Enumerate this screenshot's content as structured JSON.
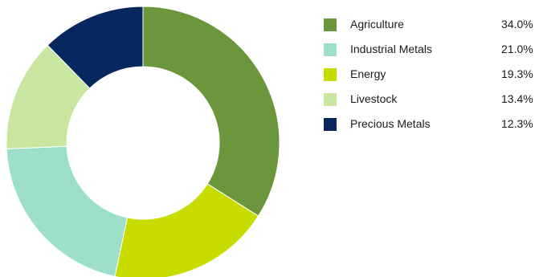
{
  "chart_data": {
    "type": "pie",
    "donut": true,
    "title": "",
    "legend_position": "right",
    "slices": [
      {
        "label": "Agriculture",
        "display": "34.0%",
        "value": 34.0,
        "color": "#6b963b"
      },
      {
        "label": "Energy",
        "display": "19.3%",
        "value": 19.3,
        "color": "#c8dc00"
      },
      {
        "label": "Industrial Metals",
        "display": "21.0%",
        "value": 21.0,
        "color": "#9ddfc9"
      },
      {
        "label": "Livestock",
        "display": "13.4%",
        "value": 13.4,
        "color": "#c8e6a0"
      },
      {
        "label": "Precious Metals",
        "display": "12.3%",
        "value": 12.3,
        "color": "#06275d"
      }
    ]
  },
  "legend": {
    "items": [
      {
        "label": "Agriculture",
        "value": "34.0%",
        "color": "#6b963b"
      },
      {
        "label": "Industrial Metals",
        "value": "21.0%",
        "color": "#9ddfc9"
      },
      {
        "label": "Energy",
        "value": "19.3%",
        "color": "#c8dc00"
      },
      {
        "label": "Livestock",
        "value": "13.4%",
        "color": "#c8e6a0"
      },
      {
        "label": "Precious Metals",
        "value": "12.3%",
        "color": "#06275d"
      }
    ]
  }
}
